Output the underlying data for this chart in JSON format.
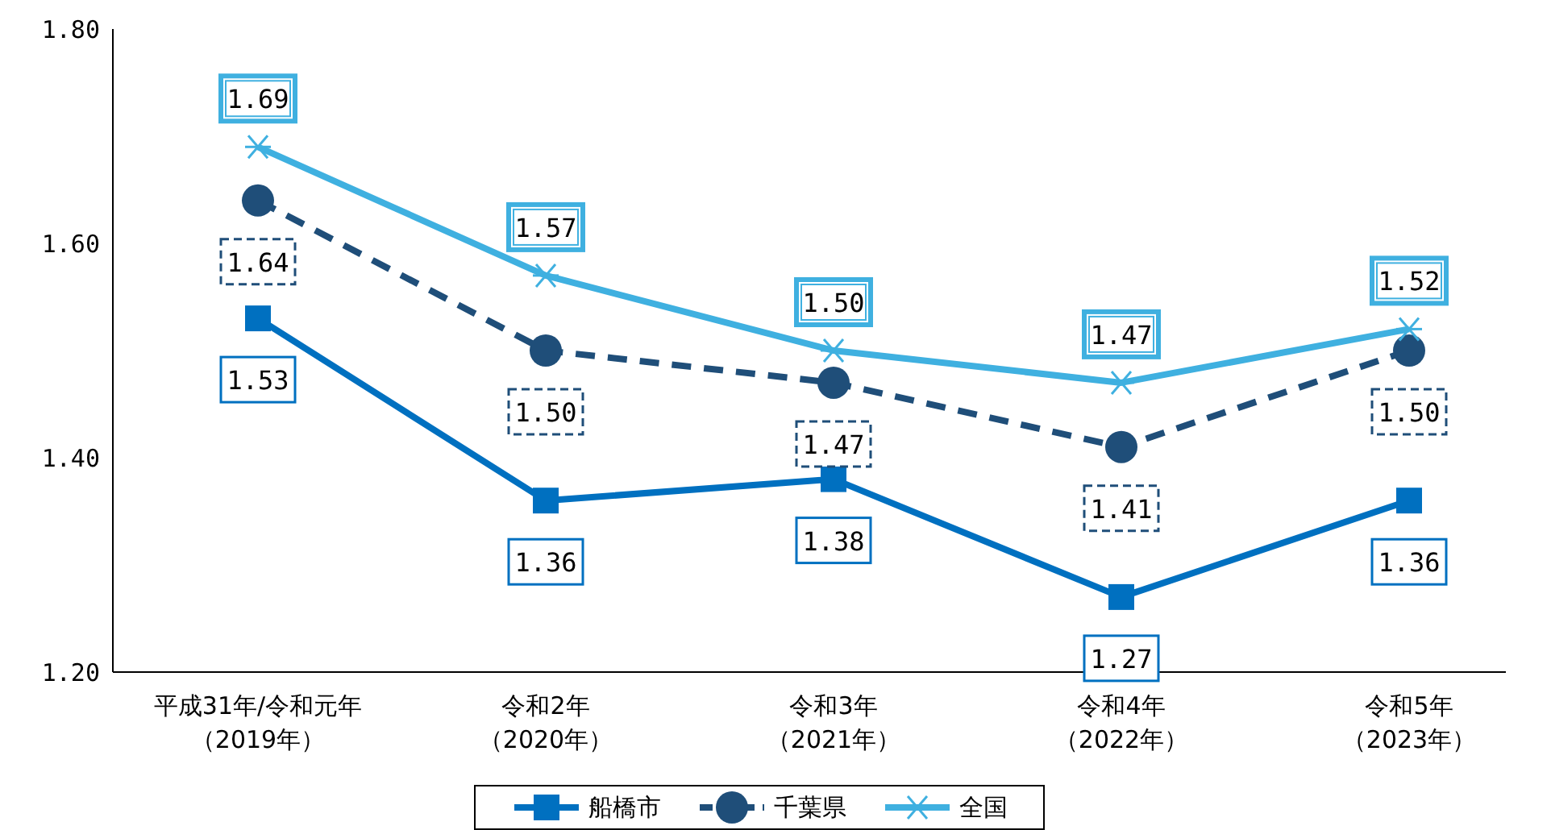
{
  "chart_data": {
    "type": "line",
    "categories": [
      "平成31年/令和元年（2019年）",
      "令和2年（2020年）",
      "令和3年（2021年）",
      "令和4年（2022年）",
      "令和5年（2023年）"
    ],
    "series": [
      {
        "name": "船橋市",
        "color": "#0070c0",
        "marker": "square",
        "line_style": "solid",
        "values": [
          1.53,
          1.36,
          1.38,
          1.27,
          1.36
        ],
        "value_labels": [
          "1.53",
          "1.36",
          "1.38",
          "1.27",
          "1.36"
        ]
      },
      {
        "name": "千葉県",
        "color": "#1f4e79",
        "marker": "circle",
        "line_style": "dashed",
        "values": [
          1.64,
          1.5,
          1.47,
          1.41,
          1.5
        ],
        "value_labels": [
          "1.64",
          "1.50",
          "1.47",
          "1.41",
          "1.50"
        ]
      },
      {
        "name": "全国",
        "color": "#3fb0e0",
        "marker": "cross",
        "line_style": "solid",
        "values": [
          1.69,
          1.57,
          1.5,
          1.47,
          1.52
        ],
        "value_labels": [
          "1.69",
          "1.57",
          "1.50",
          "1.47",
          "1.52"
        ]
      }
    ],
    "ylim": [
      1.2,
      1.8
    ],
    "yticks": [
      {
        "value": 1.2,
        "label": "1.20"
      },
      {
        "value": 1.4,
        "label": "1.40"
      },
      {
        "value": 1.6,
        "label": "1.60"
      },
      {
        "value": 1.8,
        "label": "1.80"
      }
    ],
    "legend": "bottom"
  }
}
